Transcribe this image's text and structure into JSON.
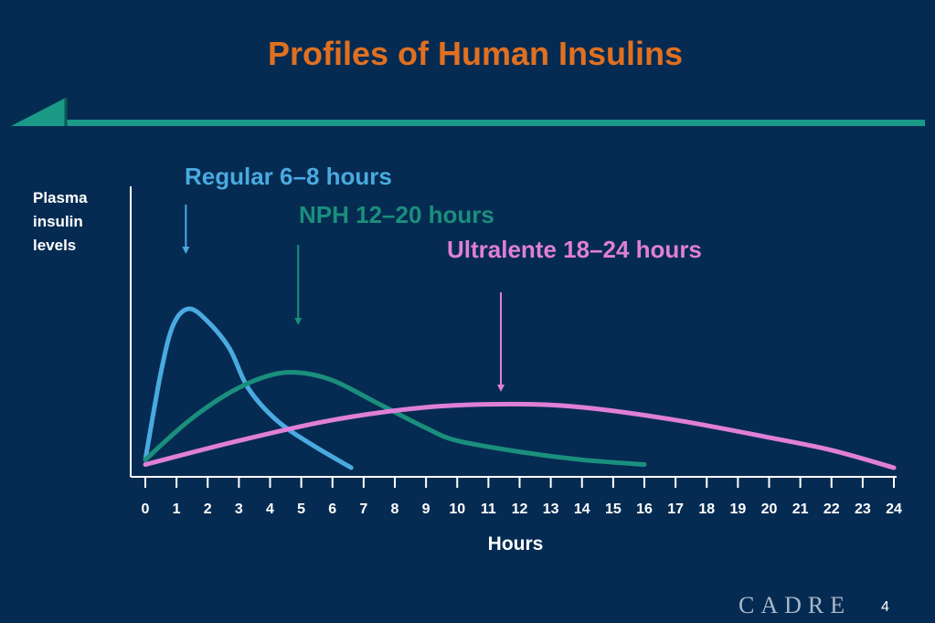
{
  "slide": {
    "title": "Profiles of Human Insulins",
    "page_number": "4",
    "logo_text": "CADRE",
    "colors": {
      "background": "#062b52",
      "title": "#e07020",
      "accent_bar": "#1a9a87",
      "axis": "#ffffff"
    }
  },
  "chart_data": {
    "type": "line",
    "title": "Profiles of Human Insulins",
    "xlabel": "Hours",
    "ylabel": "Plasma insulin levels",
    "xlim": [
      0,
      24
    ],
    "ylim": [
      0,
      1
    ],
    "x_ticks": [
      "0",
      "1",
      "2",
      "3",
      "4",
      "5",
      "6",
      "7",
      "8",
      "9",
      "10",
      "11",
      "12",
      "13",
      "14",
      "15",
      "16",
      "17",
      "18",
      "19",
      "20",
      "21",
      "22",
      "23",
      "24"
    ],
    "y_ticks": [],
    "grid": false,
    "series": [
      {
        "name": "Regular 6–8 hours",
        "color": "#4aaae0",
        "arrow_x": 1.3,
        "points": [
          [
            0,
            0.05
          ],
          [
            0.5,
            0.6
          ],
          [
            0.9,
            0.9
          ],
          [
            1.4,
            1.0
          ],
          [
            2,
            0.92
          ],
          [
            2.7,
            0.75
          ],
          [
            3.3,
            0.5
          ],
          [
            4.2,
            0.3
          ],
          [
            5.3,
            0.15
          ],
          [
            6.6,
            0.0
          ]
        ]
      },
      {
        "name": "NPH 12–20 hours",
        "color": "#1a8f7c",
        "arrow_x": 4.9,
        "points": [
          [
            0,
            0.05
          ],
          [
            1.3,
            0.28
          ],
          [
            2.6,
            0.46
          ],
          [
            3.8,
            0.57
          ],
          [
            4.8,
            0.6
          ],
          [
            6,
            0.55
          ],
          [
            7.5,
            0.4
          ],
          [
            9,
            0.25
          ],
          [
            10,
            0.17
          ],
          [
            12,
            0.1
          ],
          [
            14,
            0.05
          ],
          [
            16,
            0.02
          ]
        ]
      },
      {
        "name": "Ultralente 18–24 hours",
        "color": "#e07fd8",
        "arrow_x": 11.4,
        "points": [
          [
            0,
            0.02
          ],
          [
            3,
            0.17
          ],
          [
            6,
            0.3
          ],
          [
            9,
            0.38
          ],
          [
            11.7,
            0.4
          ],
          [
            14,
            0.38
          ],
          [
            17,
            0.3
          ],
          [
            20,
            0.19
          ],
          [
            22,
            0.11
          ],
          [
            24,
            0.0
          ]
        ]
      }
    ]
  }
}
